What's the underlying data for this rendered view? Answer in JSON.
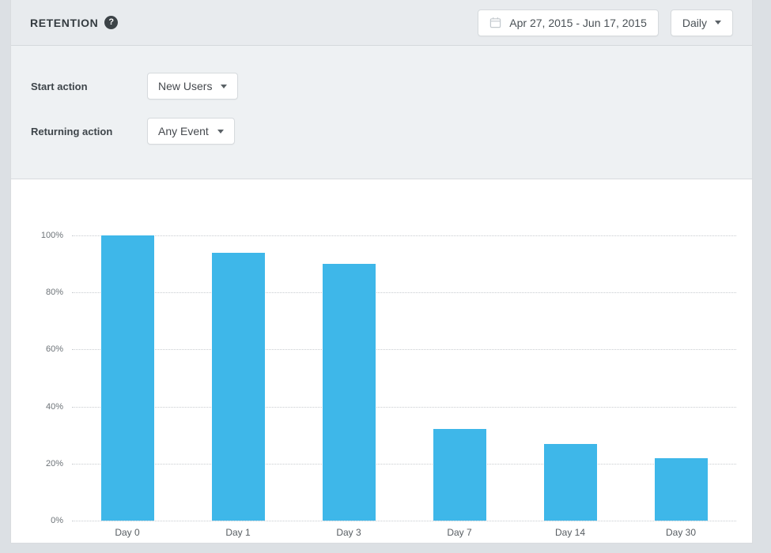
{
  "header": {
    "title": "RETENTION",
    "help_glyph": "?",
    "date_range": "Apr 27, 2015 - Jun 17, 2015",
    "interval": "Daily"
  },
  "filters": {
    "rows": [
      {
        "label": "Start action",
        "value": "New Users"
      },
      {
        "label": "Returning action",
        "value": "Any Event"
      }
    ]
  },
  "chart_data": {
    "type": "bar",
    "categories": [
      "Day 0",
      "Day 1",
      "Day 3",
      "Day 7",
      "Day 14",
      "Day 30"
    ],
    "values": [
      100,
      94,
      90,
      32,
      27,
      22
    ],
    "unit": "%",
    "title": "",
    "xlabel": "",
    "ylabel": "",
    "ylim": [
      0,
      100
    ],
    "yticks": [
      0,
      20,
      40,
      60,
      80,
      100
    ],
    "ytick_suffix": "%",
    "grid": "horizontal-dotted",
    "legend": "none",
    "bar_color": "#3eb7e9"
  },
  "colors": {
    "page_bg": "#dce0e4",
    "header_bg": "#e8ebee",
    "filter_bg": "#eef1f3",
    "panel_bg": "#ffffff",
    "border": "#d6dadd",
    "bar": "#3eb7e9",
    "gridline": "#c8ccd0",
    "title_text": "#343b40",
    "tick_text": "#6d7378"
  }
}
